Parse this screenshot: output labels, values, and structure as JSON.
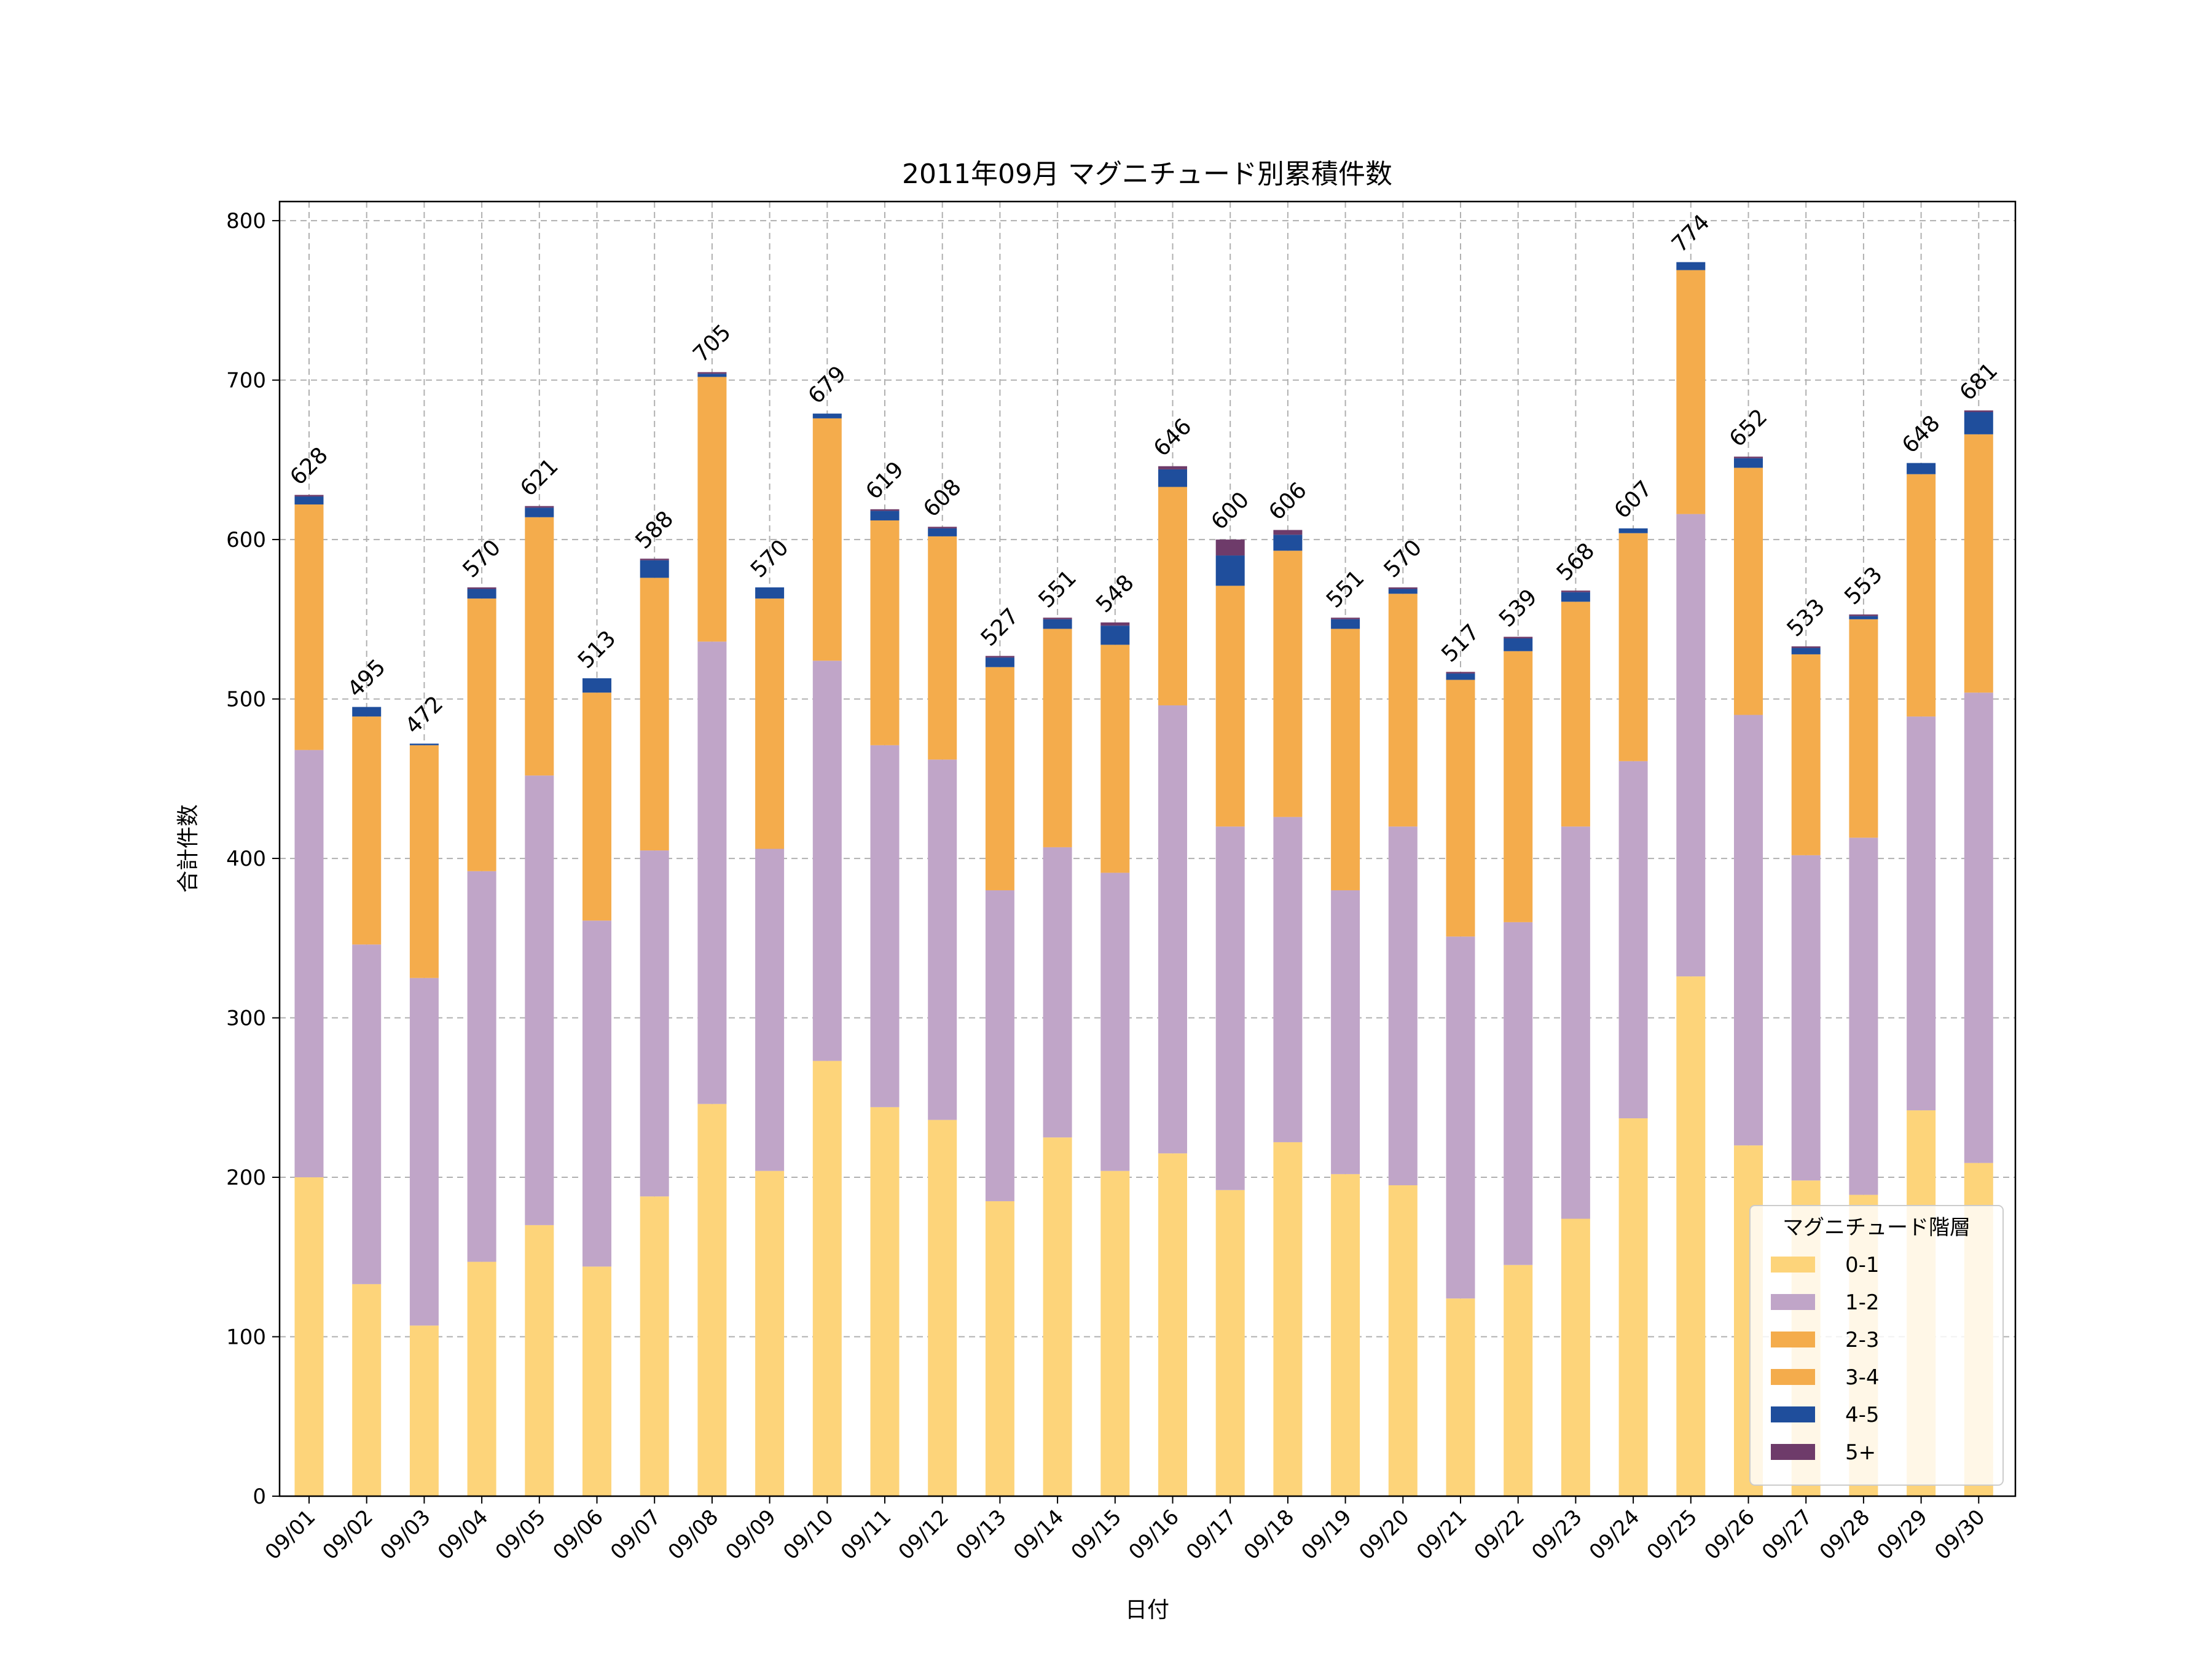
{
  "chart_data": {
    "type": "bar",
    "stacked": true,
    "title": "2011年09月 マグニチュード別累積件数",
    "xlabel": "日付",
    "ylabel": "合計件数",
    "ylim": [
      0,
      812
    ],
    "yticks": [
      0,
      100,
      200,
      300,
      400,
      500,
      600,
      700,
      800
    ],
    "grid": true,
    "legend": {
      "title": "マグニチュード階層",
      "placement": "lower-right"
    },
    "categories": [
      "09/01",
      "09/02",
      "09/03",
      "09/04",
      "09/05",
      "09/06",
      "09/07",
      "09/08",
      "09/09",
      "09/10",
      "09/11",
      "09/12",
      "09/13",
      "09/14",
      "09/15",
      "09/16",
      "09/17",
      "09/18",
      "09/19",
      "09/20",
      "09/21",
      "09/22",
      "09/23",
      "09/24",
      "09/25",
      "09/26",
      "09/27",
      "09/28",
      "09/29",
      "09/30"
    ],
    "series": [
      {
        "name": "0-1",
        "color": "#FDD47A",
        "values": [
          200,
          133,
          107,
          147,
          170,
          144,
          188,
          246,
          204,
          273,
          244,
          236,
          185,
          225,
          204,
          215,
          192,
          222,
          202,
          195,
          124,
          145,
          174,
          237,
          326,
          220,
          198,
          189,
          242,
          209
        ]
      },
      {
        "name": "1-2",
        "color": "#C0A5C8",
        "values": [
          268,
          213,
          218,
          245,
          282,
          217,
          217,
          290,
          202,
          251,
          227,
          226,
          195,
          182,
          187,
          281,
          228,
          204,
          178,
          225,
          227,
          215,
          246,
          224,
          290,
          270,
          204,
          224,
          247,
          295
        ]
      },
      {
        "name": "2-3",
        "color": "#F4AC4C",
        "values": [
          154,
          143,
          146,
          171,
          162,
          143,
          171,
          166,
          157,
          152,
          141,
          140,
          140,
          137,
          143,
          137,
          151,
          167,
          164,
          146,
          161,
          170,
          141,
          143,
          153,
          155,
          126,
          137,
          152,
          162
        ]
      },
      {
        "name": "3-4",
        "color": "#F4AC4C",
        "values": [
          0,
          0,
          0,
          0,
          0,
          0,
          0,
          0,
          0,
          0,
          0,
          0,
          0,
          0,
          0,
          0,
          0,
          0,
          0,
          0,
          0,
          0,
          0,
          0,
          0,
          0,
          0,
          0,
          0,
          0
        ]
      },
      {
        "name": "4-5",
        "color": "#1F4E9C",
        "values": [
          5,
          6,
          1,
          6,
          6,
          9,
          11,
          2,
          7,
          3,
          6,
          5,
          6,
          6,
          12,
          11,
          19,
          10,
          6,
          3,
          4,
          8,
          6,
          3,
          5,
          6,
          4,
          2,
          7,
          14
        ]
      },
      {
        "name": "5+",
        "color": "#6E3B6A",
        "values": [
          1,
          0,
          0,
          1,
          1,
          0,
          1,
          1,
          0,
          0,
          1,
          1,
          1,
          1,
          2,
          2,
          10,
          3,
          1,
          1,
          1,
          1,
          1,
          0,
          0,
          1,
          1,
          1,
          0,
          1
        ]
      }
    ],
    "totals": [
      628,
      495,
      472,
      570,
      621,
      513,
      588,
      705,
      570,
      679,
      619,
      608,
      527,
      551,
      548,
      646,
      600,
      606,
      551,
      570,
      517,
      539,
      568,
      607,
      774,
      652,
      533,
      553,
      648,
      681
    ]
  }
}
